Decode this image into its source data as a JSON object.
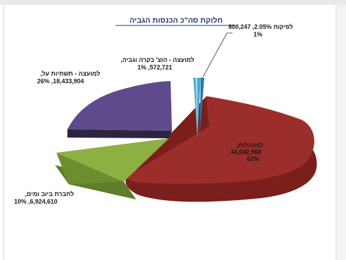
{
  "chart_data": {
    "type": "pie",
    "title": "חלוקת סה\"כ הכנסות הגביה",
    "slices": [
      {
        "key": "management",
        "label_line1": "למנהלות,",
        "label_line2": "44,042,968 ,",
        "label_line3": "62%",
        "value": 44042968,
        "percent": 62,
        "color": "#9b2d2a"
      },
      {
        "key": "swim",
        "label_line1": "לחברת ביוב ומים,",
        "label_line2": "10% ,6,924,610",
        "label_line3": "",
        "value": 6924610,
        "percent": 10,
        "color": "#8db042"
      },
      {
        "key": "council_infra",
        "label_line1": "למועצה - תשתיות על,",
        "label_line2": "26% ,18,433,904",
        "label_line3": "",
        "value": 18433904,
        "percent": 26,
        "color": "#5f4a8b"
      },
      {
        "key": "council_control",
        "label_line1": "למועצה - הוצ' בקרה וגביה,",
        "label_line2": "1% ,572,721",
        "label_line3": "",
        "value": 572721,
        "percent": 1,
        "color": "#4bacc6"
      },
      {
        "key": "deposit",
        "label_line1": "לפיקוח 2.05%, 800,247",
        "label_line2": "1%",
        "label_line3": "",
        "value": 800247,
        "percent": 1,
        "color": "#2e75b6"
      }
    ]
  }
}
